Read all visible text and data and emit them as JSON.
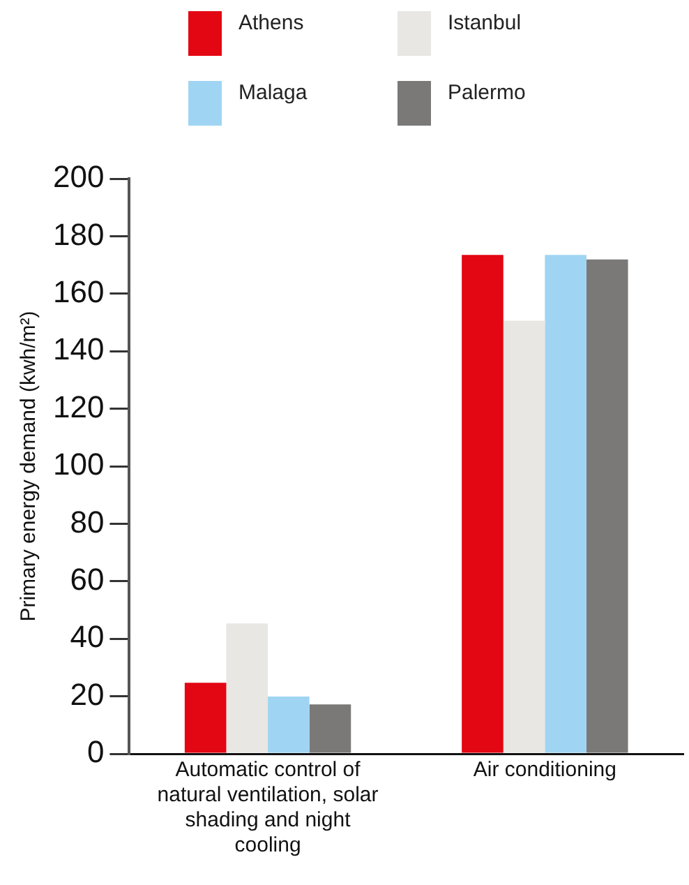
{
  "chart_data": {
    "type": "bar",
    "ylabel": "Primary energy demand (kwh/m²)",
    "categories": [
      "Automatic control of natural ventilation, solar shading and night cooling",
      "Air conditioning"
    ],
    "series": [
      {
        "name": "Athens",
        "color": "#e30613",
        "values": [
          24.7,
          173.5
        ]
      },
      {
        "name": "Istanbul",
        "color": "#e8e7e3",
        "values": [
          45.3,
          150.6
        ]
      },
      {
        "name": "Malaga",
        "color": "#9fd5f3",
        "values": [
          19.9,
          173.5
        ]
      },
      {
        "name": "Palermo",
        "color": "#7a7977",
        "values": [
          17.2,
          171.9
        ]
      }
    ],
    "ylim": [
      0,
      200
    ],
    "yticks": [
      0,
      20,
      40,
      60,
      80,
      100,
      120,
      140,
      160,
      180,
      200
    ],
    "grid": false,
    "legend": "top"
  }
}
